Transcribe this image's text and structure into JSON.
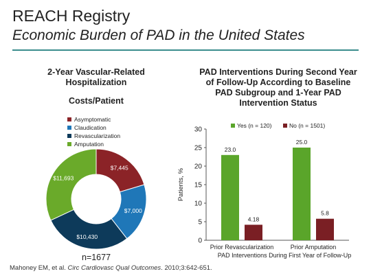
{
  "slide": {
    "title": "REACH Registry",
    "subtitle": "Economic Burden of PAD in the United States",
    "citation_authors": "Mahoney EM, et al. ",
    "citation_journal": "Circ Cardiovasc Qual Outcomes",
    "citation_rest": ". 2010;3:642-651."
  },
  "colors": {
    "asymptomatic": "#8b2327",
    "claudication": "#1f77b8",
    "revascularization": "#0d3a5a",
    "amputation": "#6aaa2a",
    "yes": "#5aa52a",
    "no": "#7a1f24",
    "rule": "#3a8c8c"
  },
  "chart_data": [
    {
      "type": "pie",
      "title": "2-Year Vascular-Related Hospitalization",
      "subtitle": "Costs/Patient",
      "labels": [
        "Asymptomatic",
        "Claudication",
        "Revascularization",
        "Amputation"
      ],
      "values": [
        7445,
        7000,
        10430,
        11693
      ],
      "value_labels": [
        "$7,445",
        "$7,000",
        "$10,430",
        "$11,693"
      ],
      "legend": "top-left",
      "note": "n=1677"
    },
    {
      "type": "bar",
      "title": "PAD Interventions During Second Year of Follow-Up According to Baseline PAD Subgroup and 1-Year PAD Intervention Status",
      "categories": [
        "Prior Revascularization",
        "Prior Amputation"
      ],
      "series": [
        {
          "name": "Yes (n = 120)",
          "values": [
            23.0,
            25.0
          ],
          "value_labels": [
            "23.0",
            "25.0"
          ]
        },
        {
          "name": "No (n = 1501)",
          "values": [
            4.18,
            5.8
          ],
          "value_labels": [
            "4.18",
            "5.8"
          ]
        }
      ],
      "xlabel": "PAD Interventions During First Year of Follow-Up",
      "ylabel": "Patients, %",
      "ylim": [
        0,
        30
      ],
      "yticks": [
        "0",
        "5",
        "10",
        "15",
        "20",
        "25",
        "30"
      ],
      "legend": "top",
      "grid": false
    }
  ]
}
